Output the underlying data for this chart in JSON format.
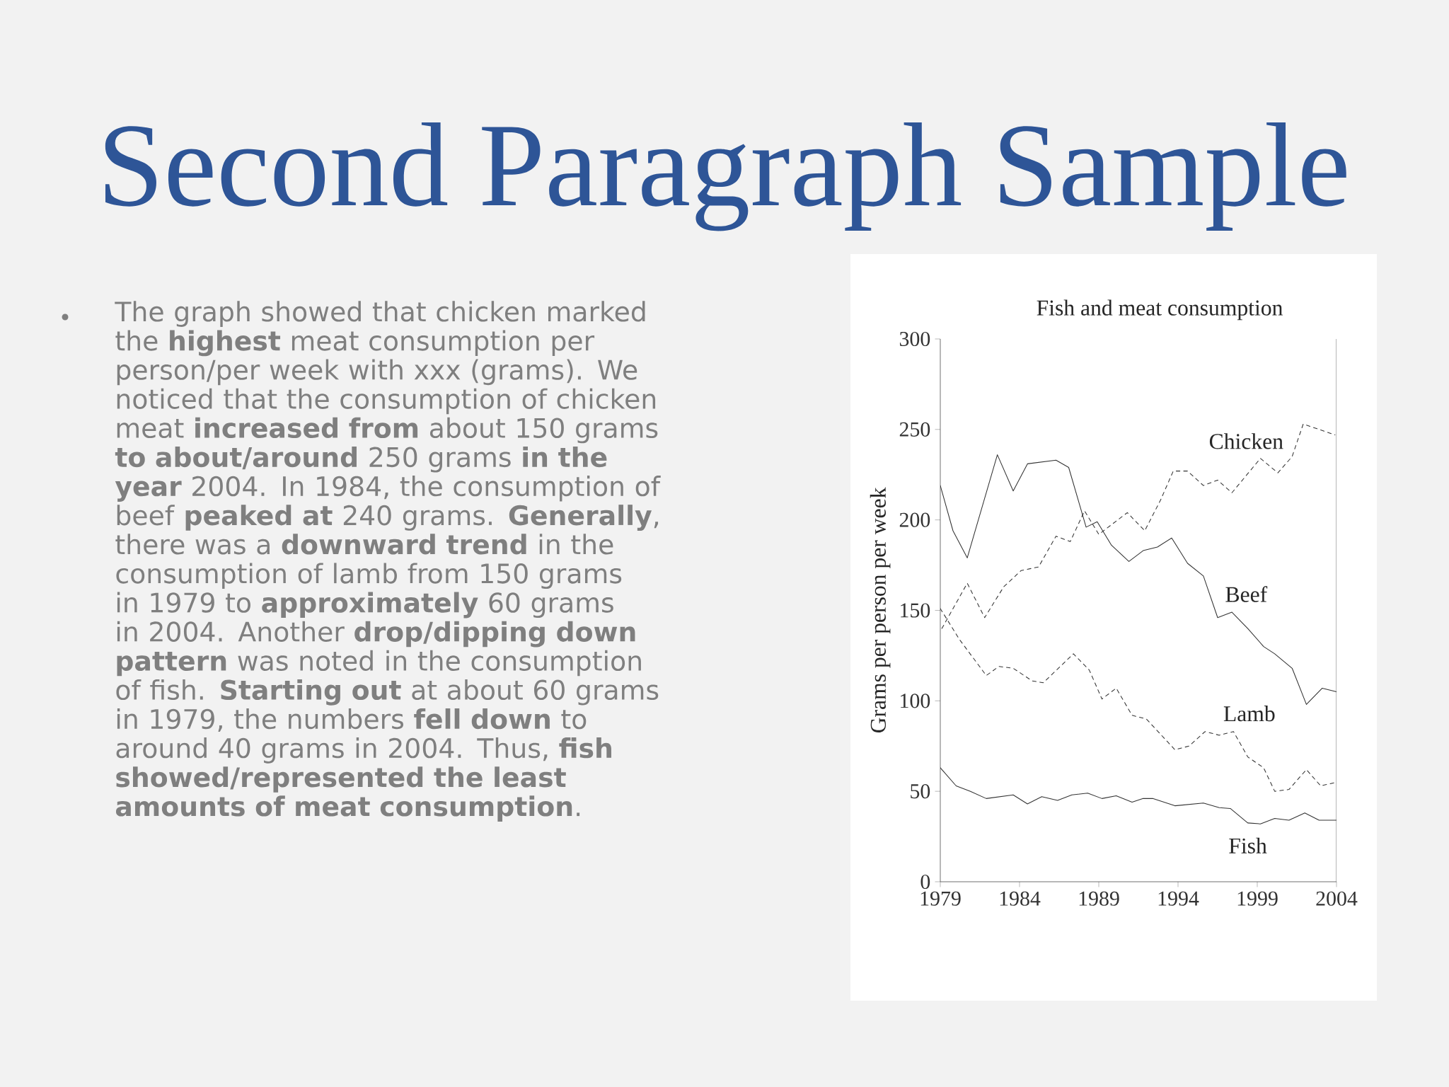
{
  "chart_data": {
    "type": "line",
    "title": "Second Paragraph Sample",
    "subtitle": "Fish and meat consumption",
    "ylabel": "Grams per person per week",
    "annotations": [
      "The graph showed that chicken marked the **highest** meat consumption per person/per week with xxx (grams). We noticed that the consumption of chicken meat **increased from** about 150 grams **to about/around** 250 grams **in the year** 2004. In 1984, the consumption of beef **peaked at** 240 grams. **Generally**, there was a **downward trend** in the consumption of lamb from 150 grams in 1979 to **approximately** 60 grams in 2004. Another **drop/dipping down pattern** was noted in the consumption of fish. **Starting out** at about 60 grams in 1979, the numbers **fell down** to around 40 grams in 2004. Thus, **fish showed/represented the least amounts of meat consumption**."
    ],
    "xlim": [
      1979,
      2004
    ],
    "xticks": [
      1979,
      1984,
      1989,
      1994,
      1999,
      2004
    ],
    "ylim": [
      0,
      300
    ],
    "yticks": [
      0,
      50,
      100,
      150,
      200,
      250,
      300
    ],
    "grid": false,
    "marker": "none",
    "series": [
      {
        "name": "Chicken",
        "color": "#333333",
        "line_style": "dashed",
        "x": [
          1979.1,
          1980.7,
          1981.8,
          1983.0,
          1984.1,
          1985.2,
          1986.3,
          1987.2,
          1988.1,
          1989.0,
          1990.8,
          1991.9,
          1992.9,
          1993.7,
          1994.6,
          1995.6,
          1996.5,
          1997.4,
          1999.2,
          2000.3,
          2001.2,
          2001.9,
          2002.9,
          2003.9
        ],
        "values": [
          140,
          165,
          146,
          163,
          172,
          174,
          191,
          188,
          205,
          192,
          204,
          194,
          211,
          227,
          227,
          219,
          222,
          215,
          234,
          226,
          235,
          253,
          250,
          247
        ]
      },
      {
        "name": "Beef",
        "color": "#333333",
        "line_style": "solid",
        "x": [
          1979.0,
          1979.8,
          1980.7,
          1982.6,
          1983.6,
          1984.5,
          1986.3,
          1987.1,
          1988.2,
          1988.9,
          1989.8,
          1990.9,
          1991.8,
          1992.7,
          1993.6,
          1994.6,
          1995.6,
          1996.5,
          1997.4,
          1998.4,
          1999.4,
          2000.1,
          2001.2,
          2002.1,
          2003.1,
          2004.0
        ],
        "values": [
          219,
          194,
          179,
          236,
          216,
          231,
          233,
          229,
          196,
          199,
          186,
          177,
          183,
          185,
          190,
          176,
          169,
          146,
          149,
          140,
          130,
          126,
          118,
          98,
          107,
          105
        ]
      },
      {
        "name": "Lamb",
        "color": "#333333",
        "line_style": "dashed",
        "x": [
          1979.0,
          1980.2,
          1981.9,
          1982.7,
          1983.6,
          1984.8,
          1985.5,
          1987.4,
          1988.4,
          1989.2,
          1990.1,
          1991.1,
          1992.0,
          1993.8,
          1994.7,
          1995.7,
          1996.6,
          1997.5,
          1998.4,
          1999.4,
          2000.1,
          2001.0,
          2002.1,
          2003.0,
          2004.0
        ],
        "values": [
          151,
          134,
          114,
          119,
          118,
          111,
          110,
          126,
          117,
          101,
          107,
          92,
          90,
          73,
          75,
          83,
          81,
          83,
          69,
          63,
          50,
          51,
          62,
          53,
          55
        ]
      },
      {
        "name": "Fish",
        "color": "#333333",
        "line_style": "solid",
        "x": [
          1979.0,
          1980.0,
          1980.9,
          1981.9,
          1983.6,
          1984.5,
          1985.4,
          1986.4,
          1987.3,
          1988.3,
          1989.2,
          1990.1,
          1991.1,
          1991.8,
          1992.4,
          1993.8,
          1995.6,
          1996.6,
          1997.3,
          1998.4,
          1999.2,
          2000.1,
          2001.0,
          2002.0,
          2002.9,
          2004.0
        ],
        "values": [
          63,
          53,
          50,
          46,
          48,
          43,
          47,
          45,
          48,
          49,
          46,
          47.5,
          44,
          46,
          46,
          42,
          43.5,
          41,
          40.5,
          32.5,
          32,
          35,
          34,
          38,
          34,
          34
        ]
      }
    ]
  }
}
